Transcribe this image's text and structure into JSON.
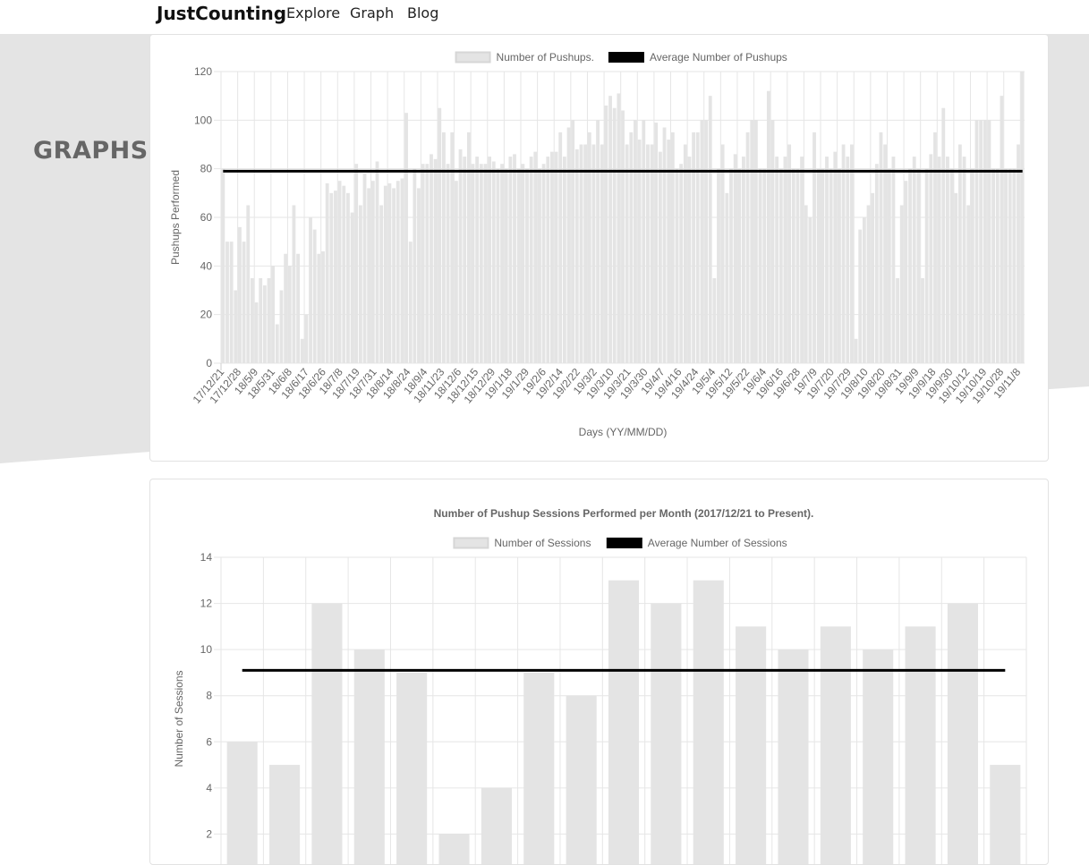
{
  "nav": {
    "brand": "JustCounting",
    "links": [
      "Explore",
      "Graph",
      "Blog"
    ]
  },
  "page": {
    "side_title": "GRAPHS:"
  },
  "colors": {
    "bar_fill": "#e4e4e4",
    "bar_border": "#d6d6d6",
    "average_line": "#000000",
    "grid": "#e6e6e6",
    "background_band": "#e4e4e4"
  },
  "chart_data": [
    {
      "type": "bar",
      "title": "",
      "xlabel": "Days (YY/MM/DD)",
      "ylabel": "Pushups Performed",
      "ylim": [
        0,
        120
      ],
      "yticks": [
        0,
        20,
        40,
        60,
        80,
        100,
        120
      ],
      "grid": true,
      "legend_position": "top",
      "tick_labels": [
        "17/12/21",
        "17/12/28",
        "18/5/9",
        "18/5/31",
        "18/6/8",
        "18/6/17",
        "18/6/26",
        "18/7/8",
        "18/7/19",
        "18/7/31",
        "18/8/14",
        "18/8/24",
        "18/9/4",
        "18/11/23",
        "18/12/6",
        "18/12/15",
        "18/12/29",
        "19/1/18",
        "19/1/29",
        "19/2/6",
        "19/2/14",
        "19/2/22",
        "19/3/2",
        "19/3/10",
        "19/3/21",
        "19/3/30",
        "19/4/7",
        "19/4/16",
        "19/4/24",
        "19/5/4",
        "19/5/12",
        "19/5/22",
        "19/6/4",
        "19/6/16",
        "19/6/28",
        "19/7/9",
        "19/7/20",
        "19/7/29",
        "19/8/10",
        "19/8/20",
        "19/8/31",
        "19/9/9",
        "19/9/18",
        "19/9/30",
        "19/10/12",
        "19/10/19",
        "19/10/28",
        "19/11/8"
      ],
      "series": [
        {
          "name": "Number of Pushups.",
          "kind": "bar",
          "values": [
            80,
            50,
            50,
            30,
            56,
            50,
            65,
            35,
            25,
            35,
            32,
            35,
            40,
            16,
            30,
            45,
            40,
            65,
            45,
            10,
            20,
            60,
            55,
            45,
            46,
            74,
            70,
            71,
            75,
            73,
            70,
            62,
            82,
            65,
            78,
            72,
            75,
            83,
            65,
            73,
            74,
            72,
            75,
            76,
            103,
            50,
            80,
            72,
            82,
            82,
            86,
            84,
            105,
            95,
            82,
            95,
            75,
            88,
            85,
            95,
            82,
            85,
            82,
            82,
            85,
            83,
            80,
            82,
            80,
            85,
            86,
            80,
            82,
            80,
            85,
            87,
            80,
            82,
            85,
            87,
            87,
            95,
            85,
            97,
            100,
            88,
            90,
            90,
            95,
            90,
            100,
            90,
            106,
            110,
            105,
            111,
            104,
            90,
            95,
            100,
            92,
            100,
            90,
            90,
            99,
            87,
            97,
            92,
            95,
            80,
            82,
            90,
            85,
            95,
            95,
            100,
            100,
            110,
            35,
            80,
            90,
            70,
            80,
            86,
            80,
            85,
            95,
            100,
            100,
            80,
            80,
            112,
            100,
            85,
            80,
            85,
            90,
            80,
            80,
            85,
            65,
            60,
            95,
            80,
            80,
            85,
            80,
            87,
            80,
            90,
            85,
            90,
            10,
            55,
            60,
            65,
            70,
            82,
            95,
            90,
            80,
            85,
            35,
            65,
            75,
            80,
            85,
            80,
            35,
            80,
            86,
            95,
            85,
            105,
            85,
            80,
            70,
            90,
            85,
            65,
            80,
            100,
            100,
            100,
            100,
            80,
            80,
            110,
            80,
            80,
            80,
            90,
            120
          ]
        },
        {
          "name": "Average Number of Pushups",
          "kind": "line",
          "value": 79
        }
      ]
    },
    {
      "type": "bar",
      "title": "Number of Pushup Sessions Performed per Month (2017/12/21 to Present).",
      "xlabel": "",
      "ylabel": "Number of Sessions",
      "ylim": [
        0,
        14
      ],
      "yticks": [
        2,
        4,
        6,
        8,
        10,
        12,
        14
      ],
      "grid": true,
      "legend_position": "top",
      "series": [
        {
          "name": "Number of Sessions",
          "kind": "bar",
          "values": [
            6,
            5,
            12,
            10,
            9,
            2,
            4,
            9,
            8,
            13,
            12,
            13,
            11,
            10,
            11,
            10,
            11,
            12,
            5
          ]
        },
        {
          "name": "Average Number of Sessions",
          "kind": "line",
          "value": 9.1
        }
      ]
    }
  ]
}
